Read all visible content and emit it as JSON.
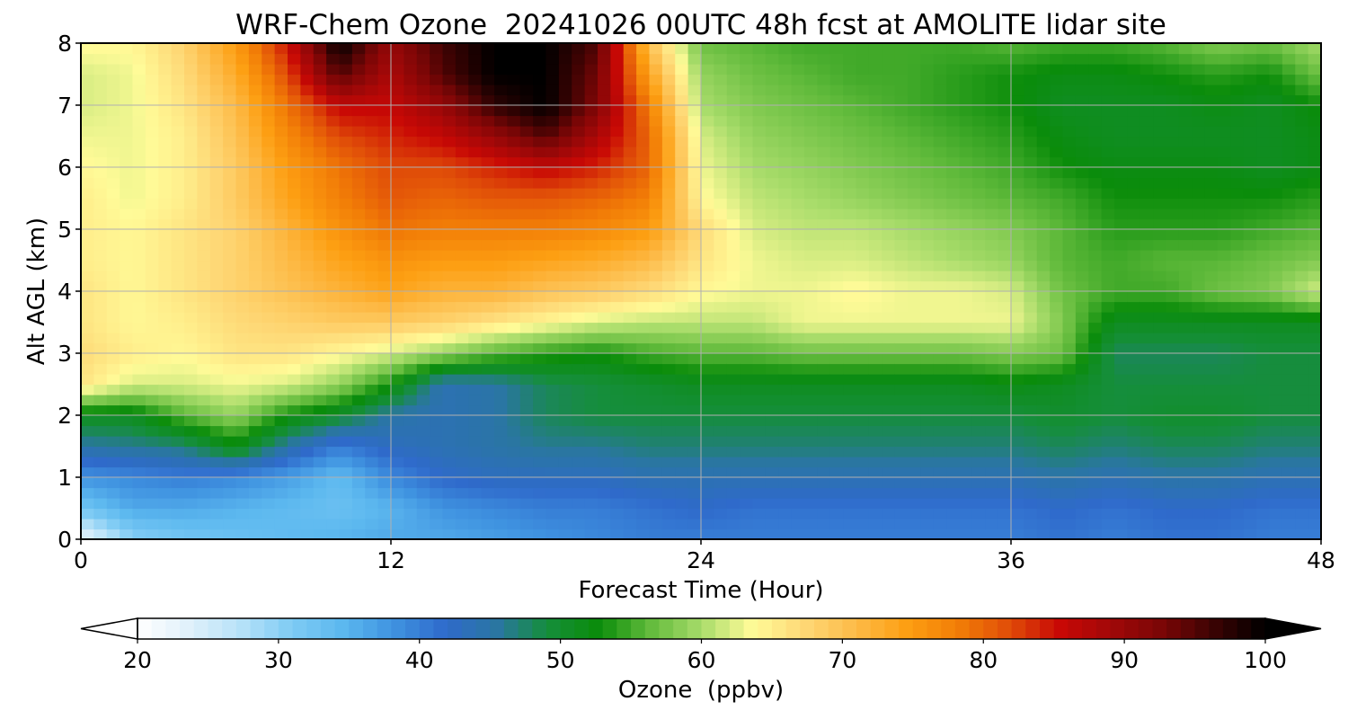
{
  "chart_data": {
    "type": "heatmap",
    "title": "WRF-Chem Ozone  20241026 00UTC 48h fcst at AMOLITE lidar site",
    "xlabel": "Forecast Time (Hour)",
    "ylabel": "Alt AGL (km)",
    "xlim": [
      0,
      48
    ],
    "ylim": [
      0,
      8
    ],
    "x_ticks": [
      0,
      12,
      24,
      36,
      48
    ],
    "y_ticks": [
      0,
      1,
      2,
      3,
      4,
      5,
      6,
      7,
      8
    ],
    "grid": true,
    "x": [
      0,
      2,
      4,
      6,
      8,
      10,
      12,
      14,
      16,
      18,
      20,
      22,
      24,
      26,
      28,
      30,
      32,
      34,
      36,
      38,
      40,
      42,
      44,
      46,
      48
    ],
    "y": [
      0,
      0.5,
      1,
      1.5,
      2,
      2.5,
      3,
      3.5,
      4,
      4.5,
      5,
      5.5,
      6,
      6.5,
      7,
      7.5,
      8
    ],
    "z": [
      [
        22,
        30,
        32,
        33,
        34,
        35,
        36,
        36,
        37,
        38,
        39,
        40,
        40,
        40,
        40,
        40,
        40,
        40,
        40,
        41,
        40,
        41,
        41,
        40,
        40
      ],
      [
        32,
        36,
        36,
        35,
        34,
        33,
        35,
        38,
        39,
        40,
        40,
        41,
        42,
        41,
        41,
        41,
        41,
        41,
        41,
        42,
        41,
        42,
        42,
        41,
        41
      ],
      [
        38,
        39,
        40,
        39,
        37,
        34,
        39,
        42,
        43,
        43,
        43,
        44,
        44,
        44,
        44,
        44,
        44,
        44,
        44,
        45,
        44,
        45,
        45,
        44,
        44
      ],
      [
        45,
        46,
        47,
        52,
        45,
        40,
        43,
        44,
        45,
        46,
        46,
        47,
        47,
        47,
        47,
        47,
        47,
        47,
        47,
        48,
        47,
        48,
        48,
        47,
        47
      ],
      [
        51,
        51,
        56,
        59,
        53,
        50,
        45,
        44,
        45,
        48,
        49,
        49,
        49,
        49,
        49,
        49,
        49,
        49,
        49,
        50,
        49,
        50,
        50,
        49,
        49
      ],
      [
        66,
        62,
        62,
        63,
        62,
        59,
        53,
        44,
        45,
        48,
        49,
        50,
        51,
        51,
        51,
        51,
        51,
        51,
        52,
        51,
        49,
        49,
        49,
        49,
        49
      ],
      [
        67,
        65,
        64,
        66,
        66,
        64,
        62,
        59,
        56,
        54,
        53,
        55,
        56,
        56,
        57,
        57,
        57,
        57,
        58,
        57,
        48,
        48,
        48,
        49,
        49
      ],
      [
        66,
        64,
        65,
        67,
        68,
        69,
        69,
        68,
        66,
        64,
        62,
        61,
        61,
        61,
        63,
        63,
        63,
        63,
        63,
        58,
        51,
        51,
        51,
        51,
        51
      ],
      [
        66,
        64,
        66,
        68,
        70,
        72,
        74,
        72,
        72,
        70,
        69,
        67,
        64,
        63,
        63,
        64,
        63,
        63,
        62,
        57,
        55,
        55,
        57,
        58,
        62
      ],
      [
        65,
        64,
        66,
        68,
        71,
        74,
        76,
        75,
        75,
        74,
        73,
        71,
        66,
        63,
        62,
        62,
        61,
        60,
        59,
        56,
        55,
        56,
        56,
        57,
        58
      ],
      [
        65,
        64,
        66,
        68,
        72,
        76,
        79,
        78,
        78,
        78,
        77,
        75,
        67,
        62,
        61,
        61,
        60,
        59,
        58,
        56,
        54,
        54,
        54,
        55,
        56
      ],
      [
        65,
        63,
        65,
        69,
        74,
        78,
        81,
        80,
        81,
        81,
        80,
        78,
        64,
        61,
        60,
        59,
        58,
        57,
        56,
        55,
        53,
        53,
        53,
        53,
        54
      ],
      [
        64,
        63,
        65,
        69,
        75,
        79,
        82,
        82,
        84,
        86,
        84,
        80,
        63,
        60,
        59,
        58,
        57,
        56,
        55,
        53,
        52,
        52,
        52,
        51,
        52
      ],
      [
        63,
        63,
        65,
        70,
        77,
        82,
        84,
        86,
        90,
        95,
        88,
        80,
        62,
        59,
        58,
        57,
        56,
        55,
        54,
        52,
        51,
        51,
        51,
        51,
        52
      ],
      [
        62,
        63,
        66,
        71,
        79,
        86,
        86,
        90,
        97,
        100,
        92,
        78,
        60,
        58,
        57,
        56,
        55,
        54,
        53,
        51,
        51,
        51,
        52,
        51,
        53
      ],
      [
        62,
        63,
        67,
        73,
        82,
        95,
        88,
        95,
        100,
        100,
        93,
        74,
        59,
        57,
        56,
        55,
        55,
        54,
        53,
        52,
        52,
        53,
        54,
        53,
        57
      ],
      [
        64,
        64,
        68,
        75,
        85,
        100,
        90,
        96,
        100,
        100,
        95,
        70,
        57,
        56,
        55,
        55,
        55,
        55,
        56,
        55,
        55,
        56,
        58,
        57,
        60
      ]
    ],
    "colorbar": {
      "label": "Ozone  (ppbv)",
      "range": [
        20,
        100
      ],
      "ticks": [
        20,
        30,
        40,
        50,
        60,
        70,
        80,
        90,
        100
      ],
      "extend": "both",
      "colors": [
        "#ffffff",
        "#e0f0fb",
        "#b7e2f8",
        "#7fcbf4",
        "#5cb8ef",
        "#3f92e0",
        "#2f6acb",
        "#2a76a2",
        "#158e3a",
        "#0a8c0a",
        "#62bb3c",
        "#a8dc6a",
        "#fffb98",
        "#fed876",
        "#fdbb48",
        "#fd9f12",
        "#f27e07",
        "#e04d08",
        "#c80805",
        "#a00808",
        "#7a0606",
        "#3a0303",
        "#000000"
      ]
    }
  }
}
